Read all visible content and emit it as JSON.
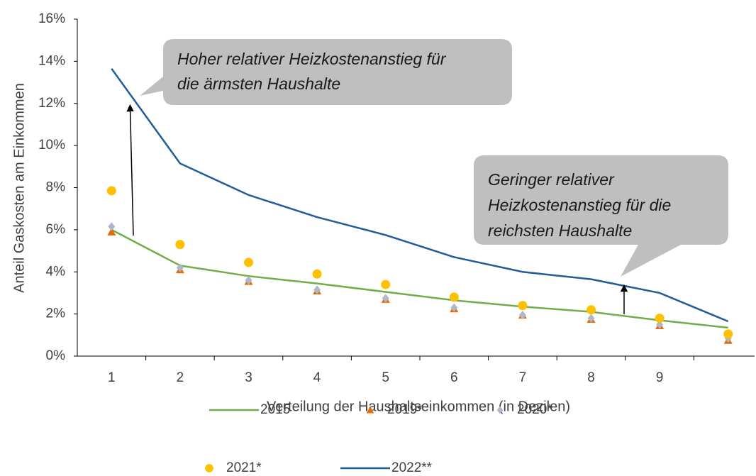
{
  "chart_data": {
    "type": "line",
    "xlabel": "Verteilung der Haushaltseinkommen (in Dezilen)",
    "ylabel": "Anteil Gaskosten am Einkommen",
    "categories": [
      "1",
      "2",
      "3",
      "4",
      "5",
      "6",
      "7",
      "8",
      "9",
      null
    ],
    "ylim": [
      0,
      16
    ],
    "yticks": [
      {
        "value": 0,
        "label": "0%"
      },
      {
        "value": 2,
        "label": "2%"
      },
      {
        "value": 4,
        "label": "4%"
      },
      {
        "value": 6,
        "label": "6%"
      },
      {
        "value": 8,
        "label": "8%"
      },
      {
        "value": 10,
        "label": "10%"
      },
      {
        "value": 12,
        "label": "12%"
      },
      {
        "value": 14,
        "label": "14%"
      },
      {
        "value": 16,
        "label": "16%"
      }
    ],
    "series": [
      {
        "name": "2015",
        "color": "#70ad47",
        "style": "line",
        "values": [
          6.0,
          4.3,
          3.8,
          3.45,
          3.05,
          2.65,
          2.35,
          2.1,
          1.7,
          1.35
        ]
      },
      {
        "name": "2019*",
        "color": "#e46c0a",
        "style": "triangle",
        "values": [
          5.9,
          4.1,
          3.55,
          3.1,
          2.7,
          2.25,
          1.95,
          1.75,
          1.45,
          0.75
        ]
      },
      {
        "name": "2020*",
        "color": "#adb9ca",
        "style": "diamond",
        "values": [
          6.15,
          4.2,
          3.6,
          3.15,
          2.75,
          2.3,
          1.95,
          1.8,
          1.5,
          0.85
        ]
      },
      {
        "name": "2021*",
        "color": "#ffc000",
        "style": "circle",
        "values": [
          7.85,
          5.3,
          4.45,
          3.9,
          3.4,
          2.8,
          2.4,
          2.2,
          1.8,
          1.05
        ]
      },
      {
        "name": "2022**",
        "color": "#1f5c99",
        "style": "line",
        "values": [
          13.65,
          9.15,
          7.65,
          6.6,
          5.75,
          4.7,
          4.0,
          3.65,
          3.0,
          1.65
        ]
      }
    ],
    "annotations": [
      {
        "lines": [
          "Hoher relativer Heizkostenanstieg für",
          "die ärmsten Haushalte"
        ]
      },
      {
        "lines": [
          "Geringer relativer",
          "Heizkostenanstieg für die",
          "reichsten Haushalte"
        ]
      }
    ]
  }
}
